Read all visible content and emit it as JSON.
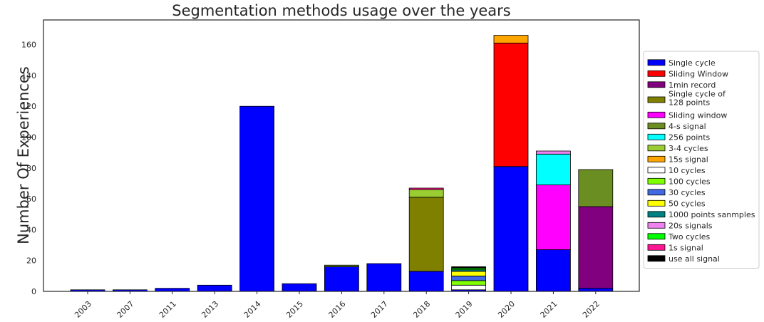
{
  "chart_data": {
    "type": "bar",
    "stacked": true,
    "title": "Segmentation methods usage over the years",
    "xlabel": "",
    "ylabel": "Number Of Experiences",
    "ylim": [
      0,
      176
    ],
    "yticks": [
      0,
      20,
      40,
      60,
      80,
      100,
      120,
      140,
      160
    ],
    "grid": false,
    "legend_position": "right",
    "categories": [
      "2003",
      "2007",
      "2011",
      "2013",
      "2014",
      "2015",
      "2016",
      "2017",
      "2018",
      "2019",
      "2020",
      "2021",
      "2022"
    ],
    "series": [
      {
        "name": "Single cycle",
        "color": "#0000ff",
        "values": [
          1,
          1,
          2,
          4,
          120,
          5,
          16,
          18,
          13,
          1,
          81,
          27,
          2
        ]
      },
      {
        "name": "Sliding Window",
        "color": "#ff0000",
        "values": [
          0,
          0,
          0,
          0,
          0,
          0,
          0,
          0,
          0,
          0,
          80,
          0,
          0
        ]
      },
      {
        "name": "1min record",
        "color": "#800080",
        "values": [
          0,
          0,
          0,
          0,
          0,
          0,
          0,
          0,
          0,
          0,
          0,
          0,
          53
        ]
      },
      {
        "name": "Single cycle of\n128 points",
        "color": "#808000",
        "values": [
          0,
          0,
          0,
          0,
          0,
          0,
          0,
          0,
          48,
          0,
          0,
          0,
          0
        ]
      },
      {
        "name": "Sliding window",
        "color": "#ff00ff",
        "values": [
          0,
          0,
          0,
          0,
          0,
          0,
          0,
          0,
          0,
          0,
          0,
          42,
          0
        ]
      },
      {
        "name": "4-s signal",
        "color": "#6b8e23",
        "values": [
          0,
          0,
          0,
          0,
          0,
          0,
          1,
          0,
          0,
          0,
          0,
          0,
          24
        ]
      },
      {
        "name": "256 points",
        "color": "#00ffff",
        "values": [
          0,
          0,
          0,
          0,
          0,
          0,
          0,
          0,
          0,
          0,
          0,
          20,
          0
        ]
      },
      {
        "name": "3-4 cycles",
        "color": "#9acd32",
        "values": [
          0,
          0,
          0,
          0,
          0,
          0,
          0,
          0,
          5,
          0,
          0,
          0,
          0
        ]
      },
      {
        "name": "15s signal",
        "color": "#ffa500",
        "values": [
          0,
          0,
          0,
          0,
          0,
          0,
          0,
          0,
          0,
          0,
          5,
          0,
          0
        ]
      },
      {
        "name": "10 cycles",
        "color": "#ffffff",
        "values": [
          0,
          0,
          0,
          0,
          0,
          0,
          0,
          0,
          0,
          3,
          0,
          0,
          0
        ]
      },
      {
        "name": "100 cycles",
        "color": "#7fff00",
        "values": [
          0,
          0,
          0,
          0,
          0,
          0,
          0,
          0,
          0,
          3,
          0,
          0,
          0
        ]
      },
      {
        "name": "30 cycles",
        "color": "#4169e1",
        "values": [
          0,
          0,
          0,
          0,
          0,
          0,
          0,
          0,
          0,
          3,
          0,
          0,
          0
        ]
      },
      {
        "name": "50 cycles",
        "color": "#ffff00",
        "values": [
          0,
          0,
          0,
          0,
          0,
          0,
          0,
          0,
          0,
          3,
          0,
          0,
          0
        ]
      },
      {
        "name": "1000 points sanmples",
        "color": "#008080",
        "values": [
          0,
          0,
          0,
          0,
          0,
          0,
          0,
          0,
          0,
          1,
          0,
          0,
          0
        ]
      },
      {
        "name": "20s signals",
        "color": "#ee82ee",
        "values": [
          0,
          0,
          0,
          0,
          0,
          0,
          0,
          0,
          0,
          0,
          0,
          2,
          0
        ]
      },
      {
        "name": "Two cycles",
        "color": "#00ff00",
        "values": [
          0,
          0,
          0,
          0,
          0,
          0,
          0,
          0,
          0,
          1,
          0,
          0,
          0
        ]
      },
      {
        "name": "1s signal",
        "color": "#ff1493",
        "values": [
          0,
          0,
          0,
          0,
          0,
          0,
          0,
          0,
          1,
          0,
          0,
          0,
          0
        ]
      },
      {
        "name": "use all signal",
        "color": "#000000",
        "values": [
          0,
          0,
          0,
          0,
          0,
          0,
          0,
          0,
          0,
          1,
          0,
          0,
          0
        ]
      }
    ]
  }
}
